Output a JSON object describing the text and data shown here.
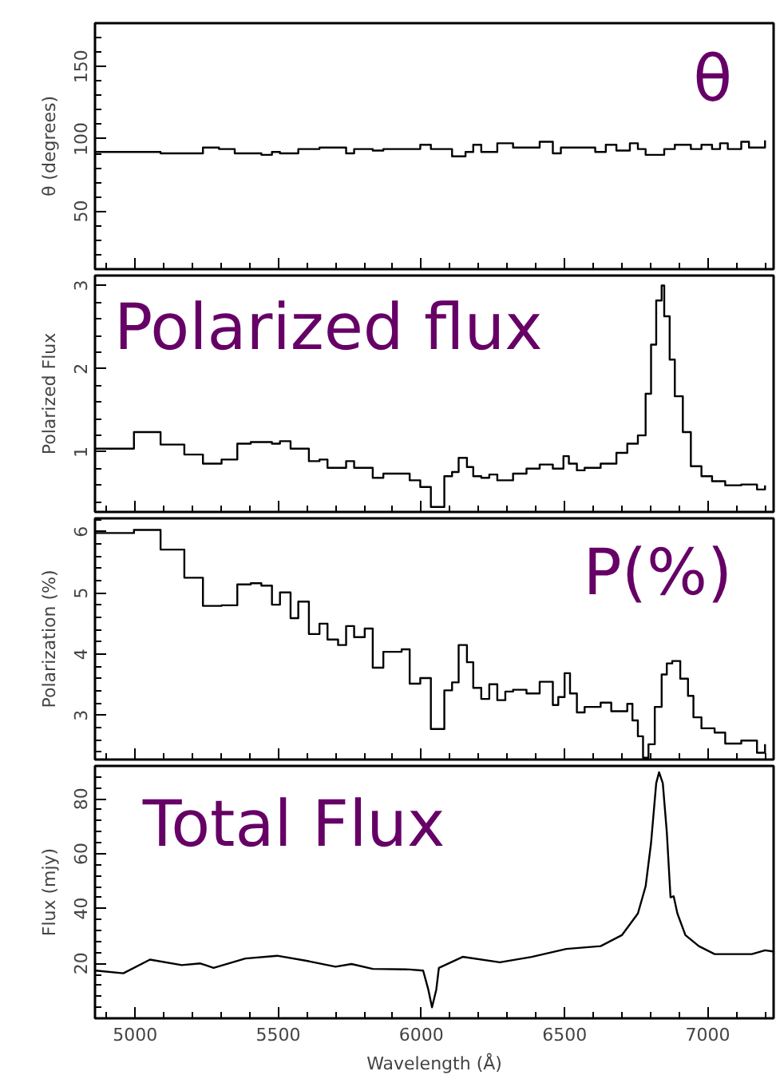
{
  "chart_data": [
    {
      "type": "step",
      "ylabel": "θ (degrees)",
      "annotations": [
        "θ"
      ],
      "xlim": [
        4860,
        7230
      ],
      "xticks": [
        5000,
        5500,
        6000,
        6500,
        7000
      ],
      "ylim": [
        10,
        180
      ],
      "yticks": [
        50,
        100,
        150
      ],
      "tick_labels": "y",
      "grid": false,
      "x": [
        4860,
        5089,
        5237,
        5293,
        5348,
        5441,
        5478,
        5506,
        5570,
        5644,
        5737,
        5765,
        5830,
        5867,
        5996,
        6033,
        6107,
        6154,
        6181,
        6209,
        6265,
        6320,
        6413,
        6459,
        6487,
        6607,
        6644,
        6681,
        6728,
        6756,
        6783,
        6848,
        6885,
        6941,
        6978,
        7015,
        7043,
        7070,
        7117,
        7144,
        7200
      ],
      "series": [
        {
          "color": "#000000",
          "values": [
            91,
            90,
            94,
            93,
            90,
            89,
            91,
            90,
            93,
            94,
            90,
            93,
            92,
            93,
            96,
            93,
            88,
            91,
            96,
            91,
            97,
            94,
            98,
            90,
            94,
            91,
            96,
            92,
            97,
            93,
            89,
            93,
            96,
            93,
            96,
            93,
            97,
            93,
            98,
            94,
            99
          ]
        }
      ]
    },
    {
      "type": "step",
      "ylabel": "Polarized Flux",
      "annotations": [
        "Polarized flux"
      ],
      "xlim": [
        4860,
        7230
      ],
      "xticks": [
        5000,
        5500,
        6000,
        6500,
        7000
      ],
      "ylim": [
        0.28,
        3.12
      ],
      "yticks": [
        1,
        2,
        3
      ],
      "tick_labels": "y",
      "grid": false,
      "x": [
        4860,
        4996,
        5089,
        5172,
        5237,
        5302,
        5357,
        5404,
        5478,
        5506,
        5543,
        5607,
        5644,
        5672,
        5737,
        5765,
        5830,
        5867,
        5959,
        5996,
        6033,
        6080,
        6107,
        6130,
        6159,
        6181,
        6209,
        6237,
        6265,
        6320,
        6367,
        6413,
        6459,
        6496,
        6515,
        6543,
        6570,
        6626,
        6681,
        6719,
        6756,
        6783,
        6802,
        6820,
        6839,
        6848,
        6867,
        6885,
        6913,
        6941,
        6978,
        7015,
        7061,
        7117,
        7172,
        7200
      ],
      "series": [
        {
          "color": "#000000",
          "values": [
            1.04,
            1.24,
            1.09,
            0.97,
            0.86,
            0.91,
            1.1,
            1.12,
            1.1,
            1.13,
            1.04,
            0.89,
            0.91,
            0.81,
            0.89,
            0.81,
            0.69,
            0.74,
            0.66,
            0.58,
            0.34,
            0.71,
            0.76,
            0.93,
            0.82,
            0.71,
            0.69,
            0.73,
            0.66,
            0.74,
            0.8,
            0.85,
            0.8,
            0.95,
            0.86,
            0.78,
            0.81,
            0.86,
            0.99,
            1.1,
            1.2,
            1.7,
            2.29,
            2.82,
            3.0,
            2.63,
            2.11,
            1.67,
            1.24,
            0.83,
            0.71,
            0.65,
            0.6,
            0.61,
            0.55,
            0.6
          ]
        }
      ]
    },
    {
      "type": "step",
      "ylabel": "Polarization (%)",
      "annotations": [
        "P(%)"
      ],
      "xlim": [
        4860,
        7230
      ],
      "xticks": [
        5000,
        5500,
        6000,
        6500,
        7000
      ],
      "ylim": [
        2.28,
        6.22
      ],
      "yticks": [
        3,
        4,
        5,
        6
      ],
      "tick_labels": "y",
      "grid": false,
      "x": [
        4860,
        4996,
        5089,
        5172,
        5237,
        5302,
        5357,
        5404,
        5441,
        5478,
        5506,
        5543,
        5570,
        5607,
        5644,
        5672,
        5709,
        5737,
        5765,
        5802,
        5830,
        5867,
        5931,
        5959,
        5996,
        6033,
        6080,
        6107,
        6130,
        6159,
        6181,
        6209,
        6237,
        6265,
        6293,
        6320,
        6367,
        6413,
        6459,
        6478,
        6500,
        6519,
        6543,
        6570,
        6626,
        6663,
        6719,
        6737,
        6756,
        6774,
        6793,
        6815,
        6839,
        6857,
        6876,
        6904,
        6931,
        6950,
        6978,
        7024,
        7061,
        7117,
        7172,
        7200
      ],
      "series": [
        {
          "color": "#000000",
          "values": [
            5.98,
            6.03,
            5.71,
            5.25,
            4.79,
            4.8,
            5.14,
            5.16,
            5.12,
            4.81,
            5.01,
            4.59,
            4.86,
            4.33,
            4.5,
            4.24,
            4.15,
            4.46,
            4.28,
            4.42,
            3.78,
            4.04,
            4.08,
            3.52,
            3.61,
            2.78,
            3.41,
            3.54,
            4.15,
            3.87,
            3.45,
            3.27,
            3.51,
            3.25,
            3.39,
            3.42,
            3.36,
            3.55,
            3.17,
            3.3,
            3.69,
            3.36,
            3.05,
            3.14,
            3.21,
            3.07,
            3.19,
            2.92,
            2.66,
            2.31,
            2.53,
            3.14,
            3.67,
            3.85,
            3.89,
            3.6,
            3.32,
            2.97,
            2.79,
            2.72,
            2.54,
            2.59,
            2.39,
            2.53
          ]
        }
      ]
    },
    {
      "type": "line",
      "xlabel": "Wavelength (Å)",
      "ylabel": "Flux (mjy)",
      "annotations": [
        "Total Flux"
      ],
      "xlim": [
        4860,
        7230
      ],
      "xticks": [
        5000,
        5500,
        6000,
        6500,
        7000
      ],
      "ylim": [
        0,
        92
      ],
      "yticks": [
        20,
        40,
        60,
        80
      ],
      "grid": false,
      "x": [
        4863,
        4959,
        5052,
        5163,
        5228,
        5274,
        5385,
        5496,
        5607,
        5700,
        5756,
        5830,
        5959,
        6006,
        6024,
        6037,
        6052,
        6061,
        6144,
        6274,
        6385,
        6506,
        6626,
        6700,
        6756,
        6783,
        6802,
        6820,
        6830,
        6843,
        6857,
        6870,
        6881,
        6894,
        6922,
        6969,
        7024,
        7154,
        7200,
        7228
      ],
      "series": [
        {
          "color": "#000000",
          "values": [
            17.4,
            16.4,
            21.4,
            19.4,
            20.0,
            18.4,
            21.8,
            22.8,
            20.8,
            18.8,
            19.8,
            18.0,
            17.8,
            17.4,
            10.5,
            4.0,
            10.5,
            18.4,
            22.4,
            20.4,
            22.4,
            25.3,
            26.3,
            30.3,
            38.2,
            48.1,
            63.9,
            85.7,
            89.7,
            85.7,
            67.9,
            44.1,
            44.5,
            38.2,
            30.3,
            26.3,
            23.4,
            23.4,
            24.8,
            24.4
          ]
        }
      ]
    }
  ]
}
